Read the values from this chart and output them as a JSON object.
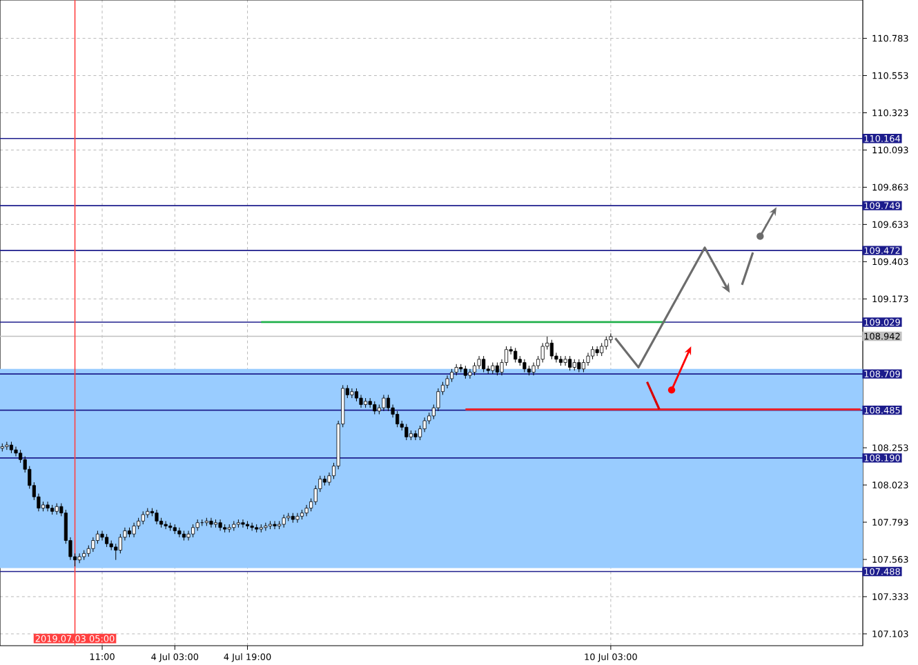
{
  "chart_data": {
    "type": "candlestick",
    "color": "#000000",
    "categories": [
      null,
      null,
      null,
      null,
      null,
      null,
      null,
      null,
      null,
      null,
      null,
      null,
      null,
      null,
      null,
      null,
      "2019.07.03 05:00",
      null,
      null,
      null,
      null,
      null,
      "11:00",
      null,
      null,
      null,
      null,
      null,
      null,
      null,
      null,
      null,
      null,
      null,
      null,
      null,
      null,
      null,
      "4 Jul 03:00",
      null,
      null,
      null,
      null,
      null,
      null,
      null,
      null,
      null,
      null,
      null,
      null,
      null,
      null,
      null,
      "4 Jul 19:00",
      null,
      null,
      null,
      null,
      null,
      null,
      null,
      null,
      null,
      null,
      null,
      null,
      null,
      null,
      null,
      null,
      null,
      null,
      null,
      null,
      null,
      null,
      null,
      null,
      null,
      null,
      null,
      null,
      null,
      null,
      null,
      null,
      null,
      null,
      null,
      null,
      null,
      null,
      null,
      null,
      null,
      null,
      null,
      null,
      null,
      null,
      null,
      null,
      null,
      null,
      null,
      null,
      null,
      null,
      null,
      null,
      null,
      null,
      null,
      null,
      null,
      null,
      null,
      null,
      null,
      null,
      null,
      null,
      null,
      null,
      null,
      null,
      null,
      null,
      null,
      null,
      null,
      null,
      null,
      "10 Jul 03:00",
      null,
      null,
      null,
      null,
      null,
      null,
      null,
      null,
      null,
      null,
      null,
      null,
      null,
      null,
      null,
      null,
      null,
      null,
      null,
      null,
      null,
      null,
      null,
      null,
      null,
      null,
      null,
      null,
      null,
      null,
      null,
      null,
      null,
      null,
      null,
      null,
      null,
      null,
      null,
      null,
      null,
      null,
      null,
      null,
      null,
      null,
      null,
      null,
      null,
      null,
      null,
      null,
      null,
      null,
      null
    ],
    "ohlc": [
      [
        108.25,
        108.28,
        108.23,
        108.26
      ],
      [
        108.26,
        108.29,
        108.24,
        108.27
      ],
      [
        108.27,
        108.29,
        108.22,
        108.24
      ],
      [
        108.24,
        108.26,
        108.2,
        108.22
      ],
      [
        108.22,
        108.24,
        108.16,
        108.18
      ],
      [
        108.18,
        108.2,
        108.1,
        108.12
      ],
      [
        108.12,
        108.14,
        108.0,
        108.02
      ],
      [
        108.02,
        108.04,
        107.93,
        107.95
      ],
      [
        107.95,
        107.97,
        107.86,
        107.88
      ],
      [
        107.88,
        107.92,
        107.86,
        107.9
      ],
      [
        107.9,
        107.92,
        107.86,
        107.88
      ],
      [
        107.88,
        107.9,
        107.84,
        107.86
      ],
      [
        107.86,
        107.91,
        107.84,
        107.89
      ],
      [
        107.89,
        107.91,
        107.83,
        107.85
      ],
      [
        107.85,
        107.87,
        107.66,
        107.68
      ],
      [
        107.68,
        107.7,
        107.56,
        107.58
      ],
      [
        107.58,
        107.6,
        107.52,
        107.56
      ],
      [
        107.56,
        107.6,
        107.54,
        107.58
      ],
      [
        107.58,
        107.62,
        107.56,
        107.6
      ],
      [
        107.6,
        107.65,
        107.58,
        107.63
      ],
      [
        107.63,
        107.7,
        107.61,
        107.68
      ],
      [
        107.68,
        107.74,
        107.66,
        107.72
      ],
      [
        107.72,
        107.74,
        107.68,
        107.7
      ],
      [
        107.7,
        107.72,
        107.64,
        107.66
      ],
      [
        107.66,
        107.68,
        107.62,
        107.64
      ],
      [
        107.64,
        107.66,
        107.56,
        107.62
      ],
      [
        107.62,
        107.72,
        107.6,
        107.7
      ],
      [
        107.7,
        107.76,
        107.68,
        107.74
      ],
      [
        107.74,
        107.76,
        107.7,
        107.72
      ],
      [
        107.72,
        107.79,
        107.7,
        107.77
      ],
      [
        107.77,
        107.82,
        107.75,
        107.8
      ],
      [
        107.8,
        107.86,
        107.78,
        107.84
      ],
      [
        107.84,
        107.88,
        107.82,
        107.86
      ],
      [
        107.86,
        107.88,
        107.83,
        107.85
      ],
      [
        107.85,
        107.87,
        107.78,
        107.8
      ],
      [
        107.8,
        107.82,
        107.76,
        107.78
      ],
      [
        107.78,
        107.8,
        107.75,
        107.77
      ],
      [
        107.77,
        107.79,
        107.74,
        107.76
      ],
      [
        107.76,
        107.78,
        107.72,
        107.74
      ],
      [
        107.74,
        107.76,
        107.7,
        107.72
      ],
      [
        107.72,
        107.74,
        107.68,
        107.7
      ],
      [
        107.7,
        107.74,
        107.68,
        107.72
      ],
      [
        107.72,
        107.78,
        107.7,
        107.76
      ],
      [
        107.76,
        107.81,
        107.74,
        107.79
      ],
      [
        107.79,
        107.81,
        107.77,
        107.79
      ],
      [
        107.79,
        107.82,
        107.77,
        107.8
      ],
      [
        107.8,
        107.82,
        107.76,
        107.78
      ],
      [
        107.78,
        107.81,
        107.76,
        107.79
      ],
      [
        107.79,
        107.81,
        107.74,
        107.76
      ],
      [
        107.76,
        107.78,
        107.73,
        107.75
      ],
      [
        107.75,
        107.78,
        107.73,
        107.76
      ],
      [
        107.76,
        107.8,
        107.74,
        107.78
      ],
      [
        107.78,
        107.81,
        107.76,
        107.79
      ],
      [
        107.79,
        107.81,
        107.76,
        107.78
      ],
      [
        107.78,
        107.8,
        107.75,
        107.77
      ],
      [
        107.77,
        107.79,
        107.74,
        107.76
      ],
      [
        107.76,
        107.78,
        107.73,
        107.75
      ],
      [
        107.75,
        107.78,
        107.73,
        107.76
      ],
      [
        107.76,
        107.79,
        107.74,
        107.77
      ],
      [
        107.77,
        107.8,
        107.75,
        107.78
      ],
      [
        107.78,
        107.8,
        107.75,
        107.77
      ],
      [
        107.77,
        107.8,
        107.75,
        107.78
      ],
      [
        107.78,
        107.84,
        107.76,
        107.82
      ],
      [
        107.82,
        107.85,
        107.8,
        107.83
      ],
      [
        107.83,
        107.85,
        107.79,
        107.81
      ],
      [
        107.81,
        107.85,
        107.79,
        107.83
      ],
      [
        107.83,
        107.87,
        107.81,
        107.85
      ],
      [
        107.85,
        107.9,
        107.83,
        107.88
      ],
      [
        107.88,
        107.94,
        107.86,
        107.92
      ],
      [
        107.92,
        108.02,
        107.9,
        108.0
      ],
      [
        108.0,
        108.08,
        107.98,
        108.06
      ],
      [
        108.06,
        108.08,
        108.02,
        108.04
      ],
      [
        108.04,
        108.1,
        108.02,
        108.08
      ],
      [
        108.08,
        108.16,
        108.06,
        108.14
      ],
      [
        108.14,
        108.42,
        108.12,
        108.4
      ],
      [
        108.4,
        108.64,
        108.38,
        108.62
      ],
      [
        108.62,
        108.64,
        108.56,
        108.58
      ],
      [
        108.58,
        108.62,
        108.56,
        108.6
      ],
      [
        108.6,
        108.62,
        108.54,
        108.56
      ],
      [
        108.56,
        108.58,
        108.5,
        108.52
      ],
      [
        108.52,
        108.56,
        108.5,
        108.54
      ],
      [
        108.54,
        108.56,
        108.5,
        108.52
      ],
      [
        108.52,
        108.54,
        108.46,
        108.48
      ],
      [
        108.48,
        108.52,
        108.46,
        108.5
      ],
      [
        108.5,
        108.58,
        108.48,
        108.56
      ],
      [
        108.56,
        108.58,
        108.48,
        108.5
      ],
      [
        108.5,
        108.52,
        108.44,
        108.46
      ],
      [
        108.46,
        108.48,
        108.38,
        108.4
      ],
      [
        108.4,
        108.42,
        108.36,
        108.38
      ],
      [
        108.38,
        108.4,
        108.3,
        108.32
      ],
      [
        108.32,
        108.36,
        108.3,
        108.34
      ],
      [
        108.34,
        108.36,
        108.3,
        108.32
      ],
      [
        108.32,
        108.39,
        108.3,
        108.37
      ],
      [
        108.37,
        108.44,
        108.35,
        108.42
      ],
      [
        108.42,
        108.47,
        108.4,
        108.45
      ],
      [
        108.45,
        108.52,
        108.43,
        108.5
      ],
      [
        108.5,
        108.62,
        108.48,
        108.6
      ],
      [
        108.6,
        108.66,
        108.58,
        108.64
      ],
      [
        108.64,
        108.7,
        108.62,
        108.68
      ],
      [
        108.68,
        108.74,
        108.66,
        108.72
      ],
      [
        108.72,
        108.77,
        108.7,
        108.75
      ],
      [
        108.75,
        108.77,
        108.72,
        108.74
      ],
      [
        108.74,
        108.76,
        108.68,
        108.7
      ],
      [
        108.7,
        108.74,
        108.68,
        108.72
      ],
      [
        108.72,
        108.78,
        108.7,
        108.76
      ],
      [
        108.76,
        108.82,
        108.74,
        108.8
      ],
      [
        108.8,
        108.82,
        108.72,
        108.74
      ],
      [
        108.74,
        108.76,
        108.71,
        108.73
      ],
      [
        108.73,
        108.78,
        108.71,
        108.76
      ],
      [
        108.76,
        108.78,
        108.7,
        108.72
      ],
      [
        108.72,
        108.8,
        108.7,
        108.78
      ],
      [
        108.78,
        108.88,
        108.76,
        108.86
      ],
      [
        108.86,
        108.88,
        108.83,
        108.85
      ],
      [
        108.85,
        108.87,
        108.78,
        108.8
      ],
      [
        108.8,
        108.82,
        108.76,
        108.78
      ],
      [
        108.78,
        108.8,
        108.72,
        108.74
      ],
      [
        108.74,
        108.76,
        108.7,
        108.72
      ],
      [
        108.72,
        108.78,
        108.7,
        108.76
      ],
      [
        108.76,
        108.82,
        108.74,
        108.8
      ],
      [
        108.8,
        108.9,
        108.78,
        108.88
      ],
      [
        108.88,
        108.94,
        108.86,
        108.9
      ],
      [
        108.9,
        108.92,
        108.8,
        108.82
      ],
      [
        108.82,
        108.84,
        108.78,
        108.8
      ],
      [
        108.8,
        108.82,
        108.76,
        108.78
      ],
      [
        108.78,
        108.82,
        108.76,
        108.8
      ],
      [
        108.8,
        108.82,
        108.73,
        108.75
      ],
      [
        108.75,
        108.8,
        108.73,
        108.78
      ],
      [
        108.78,
        108.8,
        108.72,
        108.74
      ],
      [
        108.74,
        108.8,
        108.72,
        108.78
      ],
      [
        108.78,
        108.84,
        108.76,
        108.82
      ],
      [
        108.82,
        108.88,
        108.8,
        108.86
      ],
      [
        108.86,
        108.88,
        108.82,
        108.84
      ],
      [
        108.84,
        108.9,
        108.82,
        108.88
      ],
      [
        108.88,
        108.94,
        108.86,
        108.92
      ],
      [
        108.92,
        108.96,
        108.9,
        108.94
      ],
      null,
      null,
      null,
      null,
      null,
      null,
      null,
      null,
      null,
      null,
      null,
      null,
      null,
      null,
      null,
      null,
      null,
      null,
      null,
      null,
      null,
      null,
      null,
      null,
      null,
      null,
      null,
      null,
      null,
      null,
      null,
      null,
      null,
      null,
      null,
      null,
      null,
      null,
      null,
      null,
      null,
      null,
      null,
      null,
      null,
      null,
      null,
      null,
      null,
      null,
      null,
      null,
      null,
      null,
      null
    ],
    "series": [
      {
        "type": "line",
        "color": "#22b14c",
        "values": [
          null,
          null,
          null,
          null,
          null,
          null,
          null,
          null,
          null,
          null,
          null,
          null,
          null,
          null,
          null,
          null,
          null,
          null,
          null,
          null,
          null,
          null,
          null,
          null,
          null,
          null,
          null,
          null,
          null,
          null,
          null,
          null,
          null,
          null,
          null,
          null,
          null,
          null,
          null,
          null,
          null,
          null,
          null,
          null,
          null,
          null,
          null,
          null,
          null,
          null,
          null,
          null,
          null,
          null,
          null,
          null,
          null,
          109.03,
          109.03,
          109.03,
          109.03,
          109.03,
          109.03,
          109.03,
          109.03,
          109.03,
          109.03,
          109.03,
          109.03,
          109.03,
          109.03,
          109.03,
          109.03,
          109.03,
          109.03,
          109.03,
          109.03,
          109.03,
          109.03,
          109.03,
          109.03,
          109.03,
          109.03,
          109.03,
          109.03,
          109.03,
          109.03,
          109.03,
          109.03,
          109.03,
          109.03,
          109.03,
          109.03,
          109.03,
          109.03,
          109.03,
          109.03,
          109.03,
          109.03,
          109.03,
          109.03,
          109.03,
          109.03,
          109.03,
          109.03,
          109.03,
          109.03,
          109.03,
          109.03,
          109.03,
          109.03,
          109.03,
          109.03,
          109.03,
          109.03,
          109.03,
          109.03,
          109.03,
          109.03,
          109.03,
          109.03,
          109.03,
          109.03,
          109.03,
          109.03,
          109.03,
          109.03,
          109.03,
          109.03,
          109.03,
          109.03,
          109.03,
          109.03,
          109.03,
          109.03,
          109.03,
          109.03,
          109.03,
          109.03,
          109.03,
          109.03,
          109.03,
          109.03,
          109.03,
          109.03,
          109.03,
          109.03,
          null,
          null,
          null,
          null,
          null,
          null,
          null,
          null,
          null,
          null,
          null,
          null,
          null,
          null,
          null,
          null,
          null,
          null,
          null,
          null,
          null,
          null,
          null,
          null,
          null,
          null,
          null,
          null,
          null,
          null,
          null,
          null,
          null,
          null,
          null,
          null,
          null,
          null,
          null,
          null,
          null,
          null,
          null
        ]
      },
      {
        "type": "line",
        "color": "#e8202a",
        "values": [
          null,
          null,
          null,
          null,
          null,
          null,
          null,
          null,
          null,
          null,
          null,
          null,
          null,
          null,
          null,
          null,
          null,
          null,
          null,
          null,
          null,
          null,
          null,
          null,
          null,
          null,
          null,
          null,
          null,
          null,
          null,
          null,
          null,
          null,
          null,
          null,
          null,
          null,
          null,
          null,
          null,
          null,
          null,
          null,
          null,
          null,
          null,
          null,
          null,
          null,
          null,
          null,
          null,
          null,
          null,
          null,
          null,
          null,
          null,
          null,
          null,
          null,
          null,
          null,
          null,
          null,
          null,
          null,
          null,
          null,
          null,
          null,
          null,
          null,
          null,
          null,
          null,
          null,
          null,
          null,
          null,
          null,
          null,
          null,
          null,
          null,
          null,
          null,
          null,
          null,
          null,
          null,
          null,
          null,
          null,
          null,
          null,
          null,
          null,
          null,
          null,
          null,
          108.49,
          108.49,
          108.49,
          108.49,
          108.49,
          108.49,
          108.49,
          108.49,
          108.49,
          108.49,
          108.49,
          108.49,
          108.49,
          108.49,
          108.49,
          108.49,
          108.49,
          108.49,
          108.49,
          108.49,
          108.49,
          108.49,
          108.49,
          108.49,
          108.49,
          108.49,
          108.49,
          108.49,
          108.49,
          108.49,
          108.49,
          108.49,
          108.49,
          108.49,
          108.49,
          108.49,
          108.49,
          108.49,
          108.49,
          108.49,
          108.49,
          108.49,
          108.49,
          108.49,
          108.49,
          108.49,
          108.49,
          108.49,
          108.49,
          108.49,
          108.49,
          108.49,
          108.49,
          108.49,
          108.49,
          108.49,
          108.49,
          108.49,
          108.49,
          108.49,
          108.49,
          108.49,
          108.49,
          108.49,
          108.49,
          108.49,
          108.49,
          108.49,
          108.49,
          108.49,
          108.49,
          108.49,
          108.49,
          108.49,
          108.49,
          108.49,
          108.49,
          108.49,
          108.49,
          108.49,
          108.49,
          108.49,
          108.49,
          108.49,
          108.49,
          108.49,
          108.49,
          108.49
        ]
      }
    ],
    "ylim": [
      107.03,
      111.02
    ],
    "yticks": [
      107.103,
      107.333,
      107.563,
      107.793,
      108.023,
      108.253,
      109.173,
      109.403,
      109.633,
      109.863,
      110.093,
      110.323,
      110.553,
      110.783
    ],
    "grid": true,
    "bands": [
      {
        "axis": "y",
        "from": 107.51,
        "to": 108.74,
        "color": "#99ccff"
      }
    ],
    "ref_lines": [
      {
        "axis": "y",
        "value": 110.164,
        "label": "110.164",
        "color": "#1c1c8c"
      },
      {
        "axis": "y",
        "value": 109.749,
        "label": "109.749",
        "color": "#1c1c8c"
      },
      {
        "axis": "y",
        "value": 109.472,
        "label": "109.472",
        "color": "#1c1c8c"
      },
      {
        "axis": "y",
        "value": 109.029,
        "label": "109.029",
        "color": "#1c1c8c"
      },
      {
        "axis": "y",
        "value": 108.709,
        "label": "108.709",
        "color": "#1c1c8c"
      },
      {
        "axis": "y",
        "value": 108.485,
        "label": "108.485",
        "color": "#1c1c8c"
      },
      {
        "axis": "y",
        "value": 108.19,
        "label": "108.190",
        "color": "#1c1c8c"
      },
      {
        "axis": "y",
        "value": 107.488,
        "label": "107.488",
        "color": "#1c1c8c"
      },
      {
        "axis": "y",
        "value": 108.942,
        "label": "108.942",
        "color": "#c0c0c0"
      },
      {
        "axis": "x",
        "value": "2019.07.03 05:00",
        "color": "#ff4040"
      }
    ]
  }
}
